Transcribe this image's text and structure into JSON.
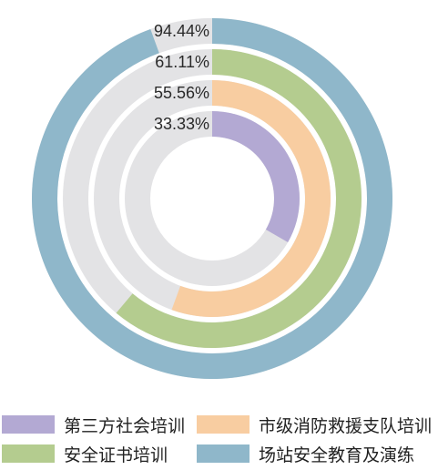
{
  "chart_data": {
    "type": "radial_bar",
    "series": [
      {
        "name": "第三方社会培训",
        "value": 33.33,
        "label": "33.33%",
        "color": "#b3a9d3"
      },
      {
        "name": "市级消防救援支队培训",
        "value": 55.56,
        "label": "55.56%",
        "color": "#f8cda1"
      },
      {
        "name": "安全证书培训",
        "value": 61.11,
        "label": "61.11%",
        "color": "#b4cc8f"
      },
      {
        "name": "场站安全教育及演练",
        "value": 94.44,
        "label": "94.44%",
        "color": "#8fb7ca"
      }
    ],
    "track_color": "#e3e3e5",
    "max": 100,
    "legend_position": "bottom"
  },
  "legend": {
    "items": [
      {
        "label": "第三方社会培训",
        "color": "#b3a9d3"
      },
      {
        "label": "市级消防救援支队培训",
        "color": "#f8cda1"
      },
      {
        "label": "安全证书培训",
        "color": "#b4cc8f"
      },
      {
        "label": "场站安全教育及演练",
        "color": "#8fb7ca"
      }
    ]
  }
}
